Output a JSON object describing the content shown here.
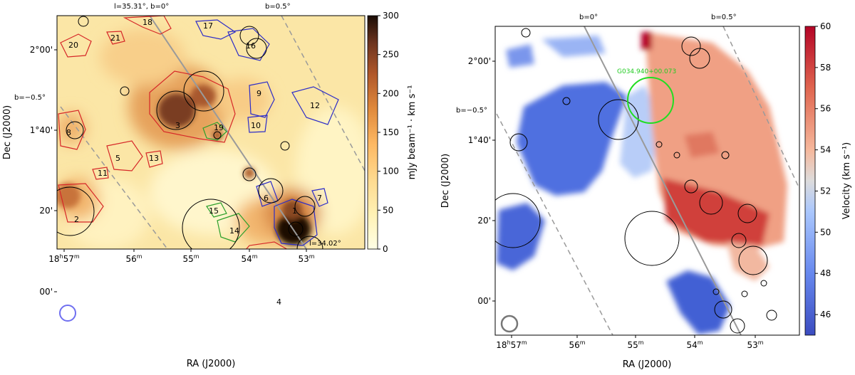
{
  "chart_data": [
    {
      "type": "heatmap",
      "title": "",
      "xlabel": "RA (J2000)",
      "ylabel": "Dec (J2000)",
      "x_ticks": [
        "18h57m",
        "56m",
        "55m",
        "54m",
        "53m"
      ],
      "y_ticks": [
        "2°00'",
        "1°40'",
        "20'",
        "00'"
      ],
      "colorbar": {
        "label": "mJy beam⁻¹ · km s⁻¹",
        "range": [
          0,
          300
        ],
        "ticks": [
          "0",
          "50",
          "100",
          "150",
          "200",
          "250",
          "300"
        ],
        "colormap": "YlOrBr"
      },
      "line_labels": {
        "l_zero": "l=35.31°, b=0°",
        "b_pos": "b=0.5°",
        "b_neg": "b=−0.5°",
        "l_end": "l=34.02°"
      },
      "regions_red": [
        "2",
        "3",
        "4",
        "5",
        "8",
        "11",
        "13",
        "18",
        "20",
        "21"
      ],
      "regions_blue": [
        "1",
        "6",
        "7",
        "9",
        "10",
        "12",
        "16",
        "17"
      ],
      "regions_green": [
        "14",
        "15",
        "19"
      ],
      "region_colors": {
        "red": "#d62728",
        "blue": "#2c2cc8",
        "green": "#2ca02c"
      }
    },
    {
      "type": "heatmap",
      "title": "",
      "xlabel": "RA (J2000)",
      "ylabel": "Dec (J2000)",
      "x_ticks": [
        "18h57m",
        "56m",
        "55m",
        "54m",
        "53m"
      ],
      "y_ticks": [
        "2°00'",
        "1°40'",
        "20'",
        "00'"
      ],
      "colorbar": {
        "label": "Velocity (km s⁻¹)",
        "range": [
          45,
          60
        ],
        "ticks": [
          "46",
          "48",
          "50",
          "52",
          "54",
          "56",
          "58",
          "60"
        ],
        "colormap": "coolwarm"
      },
      "line_labels": {
        "b_zero": "b=0°",
        "b_pos": "b=0.5°",
        "b_neg": "b=−0.5°"
      },
      "source_label": "G034.940+00.073",
      "source_color": "#22dd22"
    }
  ]
}
